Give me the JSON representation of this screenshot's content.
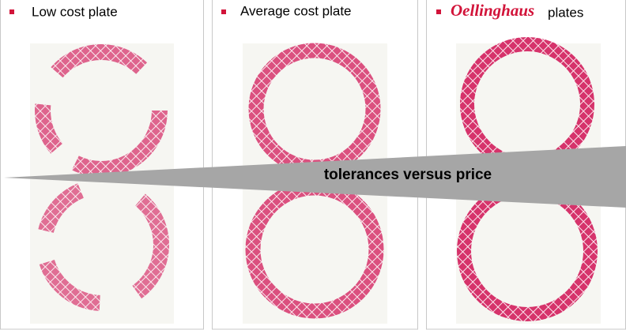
{
  "panels": [
    {
      "title": "Low cost plate"
    },
    {
      "title": "Average cost plate"
    },
    {
      "brand": "Oellinghaus",
      "title": "plates"
    }
  ],
  "banner": {
    "text": "tolerances versus price"
  }
}
